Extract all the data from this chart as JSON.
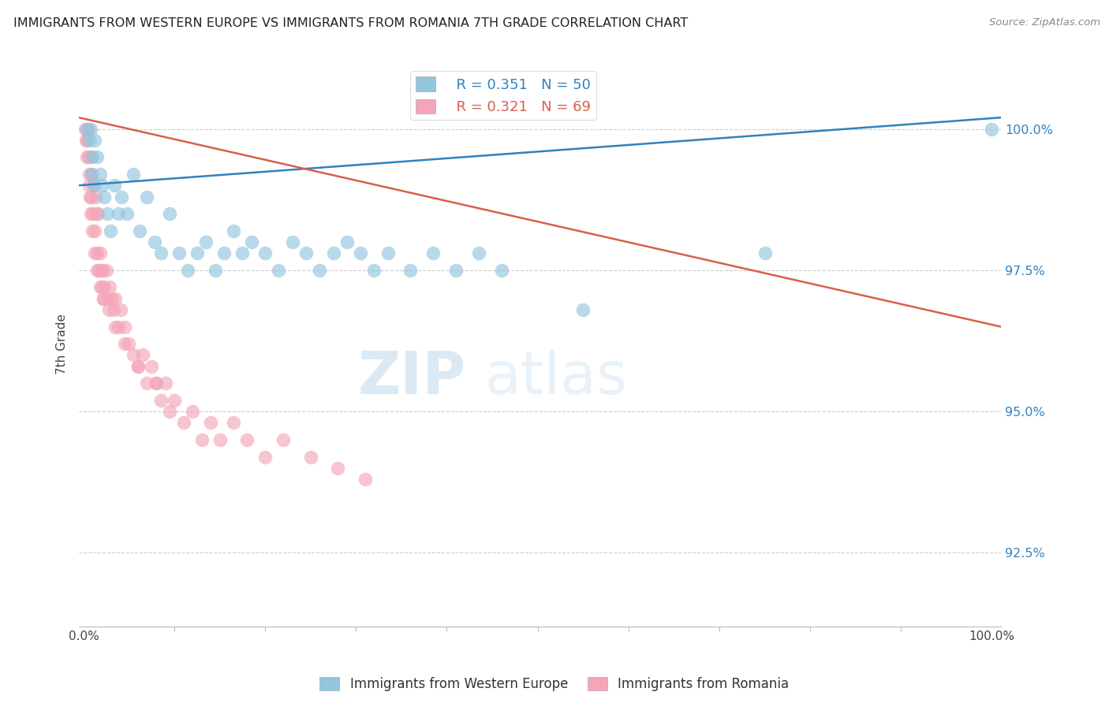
{
  "title": "IMMIGRANTS FROM WESTERN EUROPE VS IMMIGRANTS FROM ROMANIA 7TH GRADE CORRELATION CHART",
  "source": "Source: ZipAtlas.com",
  "ylabel": "7th Grade",
  "yticks": [
    92.5,
    95.0,
    97.5,
    100.0
  ],
  "ytick_labels": [
    "92.5%",
    "95.0%",
    "97.5%",
    "100.0%"
  ],
  "ymin": 91.2,
  "ymax": 101.2,
  "xmin": -0.5,
  "xmax": 101.0,
  "legend_blue_r": "0.351",
  "legend_blue_n": "50",
  "legend_pink_r": "0.321",
  "legend_pink_n": "69",
  "blue_color": "#92c5de",
  "pink_color": "#f4a6b8",
  "blue_line_color": "#3182bd",
  "pink_line_color": "#d6604d",
  "watermark_zip": "ZIP",
  "watermark_atlas": "atlas",
  "blue_scatter_x": [
    0.4,
    0.6,
    0.8,
    1.0,
    1.2,
    1.5,
    1.8,
    2.0,
    2.3,
    2.6,
    3.0,
    3.4,
    3.8,
    4.2,
    4.8,
    5.5,
    6.2,
    7.0,
    7.8,
    8.5,
    9.5,
    10.5,
    11.5,
    12.5,
    13.5,
    14.5,
    15.5,
    16.5,
    17.5,
    18.5,
    20.0,
    21.5,
    23.0,
    24.5,
    26.0,
    27.5,
    29.0,
    30.5,
    32.0,
    33.5,
    36.0,
    38.5,
    41.0,
    43.5,
    46.0,
    55.0,
    75.0,
    100.0,
    0.9,
    1.1
  ],
  "blue_scatter_y": [
    100.0,
    99.8,
    100.0,
    99.5,
    99.8,
    99.5,
    99.2,
    99.0,
    98.8,
    98.5,
    98.2,
    99.0,
    98.5,
    98.8,
    98.5,
    99.2,
    98.2,
    98.8,
    98.0,
    97.8,
    98.5,
    97.8,
    97.5,
    97.8,
    98.0,
    97.5,
    97.8,
    98.2,
    97.8,
    98.0,
    97.8,
    97.5,
    98.0,
    97.8,
    97.5,
    97.8,
    98.0,
    97.8,
    97.5,
    97.8,
    97.5,
    97.8,
    97.5,
    97.8,
    97.5,
    96.8,
    97.8,
    100.0,
    99.2,
    99.0
  ],
  "pink_scatter_x": [
    0.2,
    0.3,
    0.4,
    0.5,
    0.6,
    0.7,
    0.8,
    0.9,
    1.0,
    1.1,
    1.2,
    1.3,
    1.4,
    1.5,
    1.6,
    1.7,
    1.8,
    1.9,
    2.0,
    2.1,
    2.2,
    2.3,
    2.5,
    2.7,
    2.9,
    3.1,
    3.3,
    3.5,
    3.8,
    4.1,
    4.5,
    5.0,
    5.5,
    6.0,
    6.5,
    7.0,
    7.5,
    8.0,
    8.5,
    9.0,
    9.5,
    10.0,
    11.0,
    12.0,
    13.0,
    14.0,
    15.0,
    16.5,
    18.0,
    20.0,
    22.0,
    25.0,
    28.0,
    31.0,
    0.4,
    0.5,
    0.6,
    0.7,
    0.8,
    1.0,
    1.2,
    1.5,
    1.8,
    2.2,
    2.8,
    3.5,
    4.5,
    6.0,
    8.0
  ],
  "pink_scatter_y": [
    100.0,
    99.8,
    99.5,
    100.0,
    99.2,
    99.5,
    98.8,
    99.2,
    98.5,
    99.0,
    98.2,
    98.8,
    98.5,
    97.8,
    98.5,
    97.5,
    97.8,
    97.5,
    97.2,
    97.5,
    97.0,
    97.2,
    97.5,
    97.0,
    97.2,
    97.0,
    96.8,
    97.0,
    96.5,
    96.8,
    96.5,
    96.2,
    96.0,
    95.8,
    96.0,
    95.5,
    95.8,
    95.5,
    95.2,
    95.5,
    95.0,
    95.2,
    94.8,
    95.0,
    94.5,
    94.8,
    94.5,
    94.8,
    94.5,
    94.2,
    94.5,
    94.2,
    94.0,
    93.8,
    99.8,
    99.5,
    99.0,
    98.8,
    98.5,
    98.2,
    97.8,
    97.5,
    97.2,
    97.0,
    96.8,
    96.5,
    96.2,
    95.8,
    95.5
  ],
  "blue_trendline_x": [
    -0.5,
    101.0
  ],
  "blue_trendline_y": [
    99.0,
    100.2
  ],
  "pink_trendline_x": [
    -0.5,
    101.0
  ],
  "pink_trendline_y": [
    100.2,
    96.5
  ],
  "legend_label_blue": "Immigrants from Western Europe",
  "legend_label_pink": "Immigrants from Romania",
  "xtick_minor": [
    10,
    20,
    30,
    40,
    50,
    60,
    70,
    80,
    90
  ]
}
